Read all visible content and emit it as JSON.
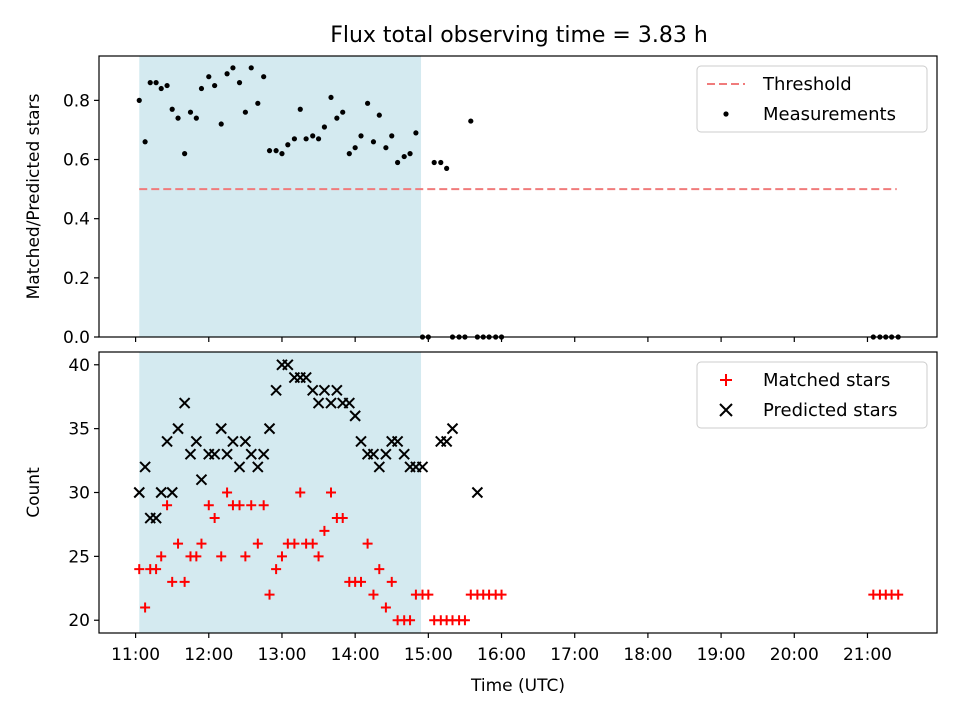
{
  "title": "Flux total observing time = 3.83 h",
  "chart_data": [
    {
      "type": "scatter",
      "ylabel": "Matched/Predicted stars",
      "xlabel": "",
      "xlim": [
        10.5,
        21.95
      ],
      "ylim": [
        0,
        0.95
      ],
      "yticks": [
        0.0,
        0.2,
        0.4,
        0.6,
        0.8
      ],
      "ytick_labels": [
        "0.0",
        "0.2",
        "0.4",
        "0.6",
        "0.8"
      ],
      "shaded_interval": {
        "from": 11.05,
        "to": 14.9,
        "color": "#d4eaf0"
      },
      "legend": {
        "placement": "top-right",
        "entries": [
          "Threshold",
          "Measurements"
        ]
      },
      "threshold": {
        "name": "Threshold",
        "y": 0.5,
        "x_from": 11.05,
        "x_to": 21.4,
        "color": "#f07b7b"
      },
      "series": [
        {
          "name": "Measurements",
          "color": "#000000",
          "x": [
            11.05,
            11.13,
            11.2,
            11.28,
            11.35,
            11.43,
            11.5,
            11.58,
            11.67,
            11.75,
            11.83,
            11.9,
            12.0,
            12.08,
            12.17,
            12.25,
            12.33,
            12.42,
            12.5,
            12.58,
            12.67,
            12.75,
            12.83,
            12.92,
            13.0,
            13.08,
            13.17,
            13.25,
            13.33,
            13.42,
            13.5,
            13.58,
            13.67,
            13.75,
            13.83,
            13.92,
            14.0,
            14.08,
            14.17,
            14.25,
            14.33,
            14.42,
            14.5,
            14.58,
            14.67,
            14.75,
            14.83,
            14.92,
            15.0,
            15.08,
            15.17,
            15.25,
            15.33,
            15.42,
            15.5,
            15.58,
            15.67,
            15.75,
            15.83,
            15.92,
            16.0,
            21.08,
            21.17,
            21.25,
            21.33,
            21.42
          ],
          "y": [
            0.8,
            0.66,
            0.86,
            0.86,
            0.84,
            0.85,
            0.77,
            0.74,
            0.62,
            0.76,
            0.74,
            0.84,
            0.88,
            0.85,
            0.72,
            0.89,
            0.91,
            0.86,
            0.76,
            0.91,
            0.79,
            0.88,
            0.63,
            0.63,
            0.62,
            0.65,
            0.67,
            0.77,
            0.67,
            0.68,
            0.67,
            0.71,
            0.81,
            0.74,
            0.76,
            0.62,
            0.64,
            0.68,
            0.79,
            0.66,
            0.75,
            0.64,
            0.68,
            0.59,
            0.61,
            0.62,
            0.69,
            0.0,
            0.0,
            0.59,
            0.59,
            0.57,
            0.0,
            0.0,
            0.0,
            0.73,
            0.0,
            0.0,
            0.0,
            0.0,
            0.0,
            0.0,
            0.0,
            0.0,
            0.0,
            0.0
          ]
        }
      ]
    },
    {
      "type": "scatter",
      "ylabel": "Count",
      "xlabel": "Time (UTC)",
      "xlim": [
        10.5,
        21.95
      ],
      "ylim": [
        19,
        41
      ],
      "yticks": [
        20,
        25,
        30,
        35,
        40
      ],
      "ytick_labels": [
        "20",
        "25",
        "30",
        "35",
        "40"
      ],
      "xticks": [
        11,
        12,
        13,
        14,
        15,
        16,
        17,
        18,
        19,
        20,
        21
      ],
      "xtick_labels": [
        "11:00",
        "12:00",
        "13:00",
        "14:00",
        "15:00",
        "16:00",
        "17:00",
        "18:00",
        "19:00",
        "20:00",
        "21:00"
      ],
      "shaded_interval": {
        "from": 11.05,
        "to": 14.9,
        "color": "#d4eaf0"
      },
      "legend": {
        "placement": "top-right",
        "entries": [
          "Matched stars",
          "Predicted stars"
        ]
      },
      "series": [
        {
          "name": "Matched stars",
          "marker": "plus",
          "color": "#ff0000",
          "x": [
            11.05,
            11.13,
            11.2,
            11.28,
            11.35,
            11.43,
            11.5,
            11.58,
            11.67,
            11.75,
            11.83,
            11.9,
            12.0,
            12.08,
            12.17,
            12.25,
            12.33,
            12.42,
            12.5,
            12.58,
            12.67,
            12.75,
            12.83,
            12.92,
            13.0,
            13.08,
            13.17,
            13.25,
            13.33,
            13.42,
            13.5,
            13.58,
            13.67,
            13.75,
            13.83,
            13.92,
            14.0,
            14.08,
            14.17,
            14.25,
            14.33,
            14.42,
            14.5,
            14.58,
            14.67,
            14.75,
            14.83,
            14.92,
            15.0,
            15.08,
            15.17,
            15.25,
            15.33,
            15.42,
            15.5,
            15.58,
            15.67,
            15.75,
            15.83,
            15.92,
            16.0,
            21.08,
            21.17,
            21.25,
            21.33,
            21.42
          ],
          "y": [
            24,
            21,
            24,
            24,
            25,
            29,
            23,
            26,
            23,
            25,
            25,
            26,
            29,
            28,
            25,
            30,
            29,
            29,
            25,
            29,
            26,
            29,
            22,
            24,
            25,
            26,
            26,
            30,
            26,
            26,
            25,
            27,
            30,
            28,
            28,
            23,
            23,
            23,
            26,
            22,
            24,
            21,
            23,
            20,
            20,
            20,
            22,
            22,
            22,
            20,
            20,
            20,
            20,
            20,
            20,
            22,
            22,
            22,
            22,
            22,
            22,
            22,
            22,
            22,
            22,
            22
          ]
        },
        {
          "name": "Predicted stars",
          "marker": "x",
          "color": "#000000",
          "x": [
            11.05,
            11.13,
            11.2,
            11.28,
            11.35,
            11.43,
            11.5,
            11.58,
            11.67,
            11.75,
            11.83,
            11.9,
            12.0,
            12.08,
            12.17,
            12.25,
            12.33,
            12.42,
            12.5,
            12.58,
            12.67,
            12.75,
            12.83,
            12.92,
            13.0,
            13.08,
            13.17,
            13.25,
            13.33,
            13.42,
            13.5,
            13.58,
            13.67,
            13.75,
            13.83,
            13.92,
            14.0,
            14.08,
            14.17,
            14.25,
            14.33,
            14.42,
            14.5,
            14.58,
            14.67,
            14.75,
            14.83,
            14.92,
            15.17,
            15.25,
            15.33,
            15.67
          ],
          "y": [
            30,
            32,
            28,
            28,
            30,
            34,
            30,
            35,
            37,
            33,
            34,
            31,
            33,
            33,
            35,
            33,
            34,
            32,
            34,
            33,
            32,
            33,
            35,
            38,
            40,
            40,
            39,
            39,
            39,
            38,
            37,
            38,
            37,
            38,
            37,
            37,
            36,
            34,
            33,
            33,
            32,
            33,
            34,
            34,
            33,
            32,
            32,
            32,
            34,
            34,
            35,
            30
          ]
        }
      ]
    }
  ]
}
